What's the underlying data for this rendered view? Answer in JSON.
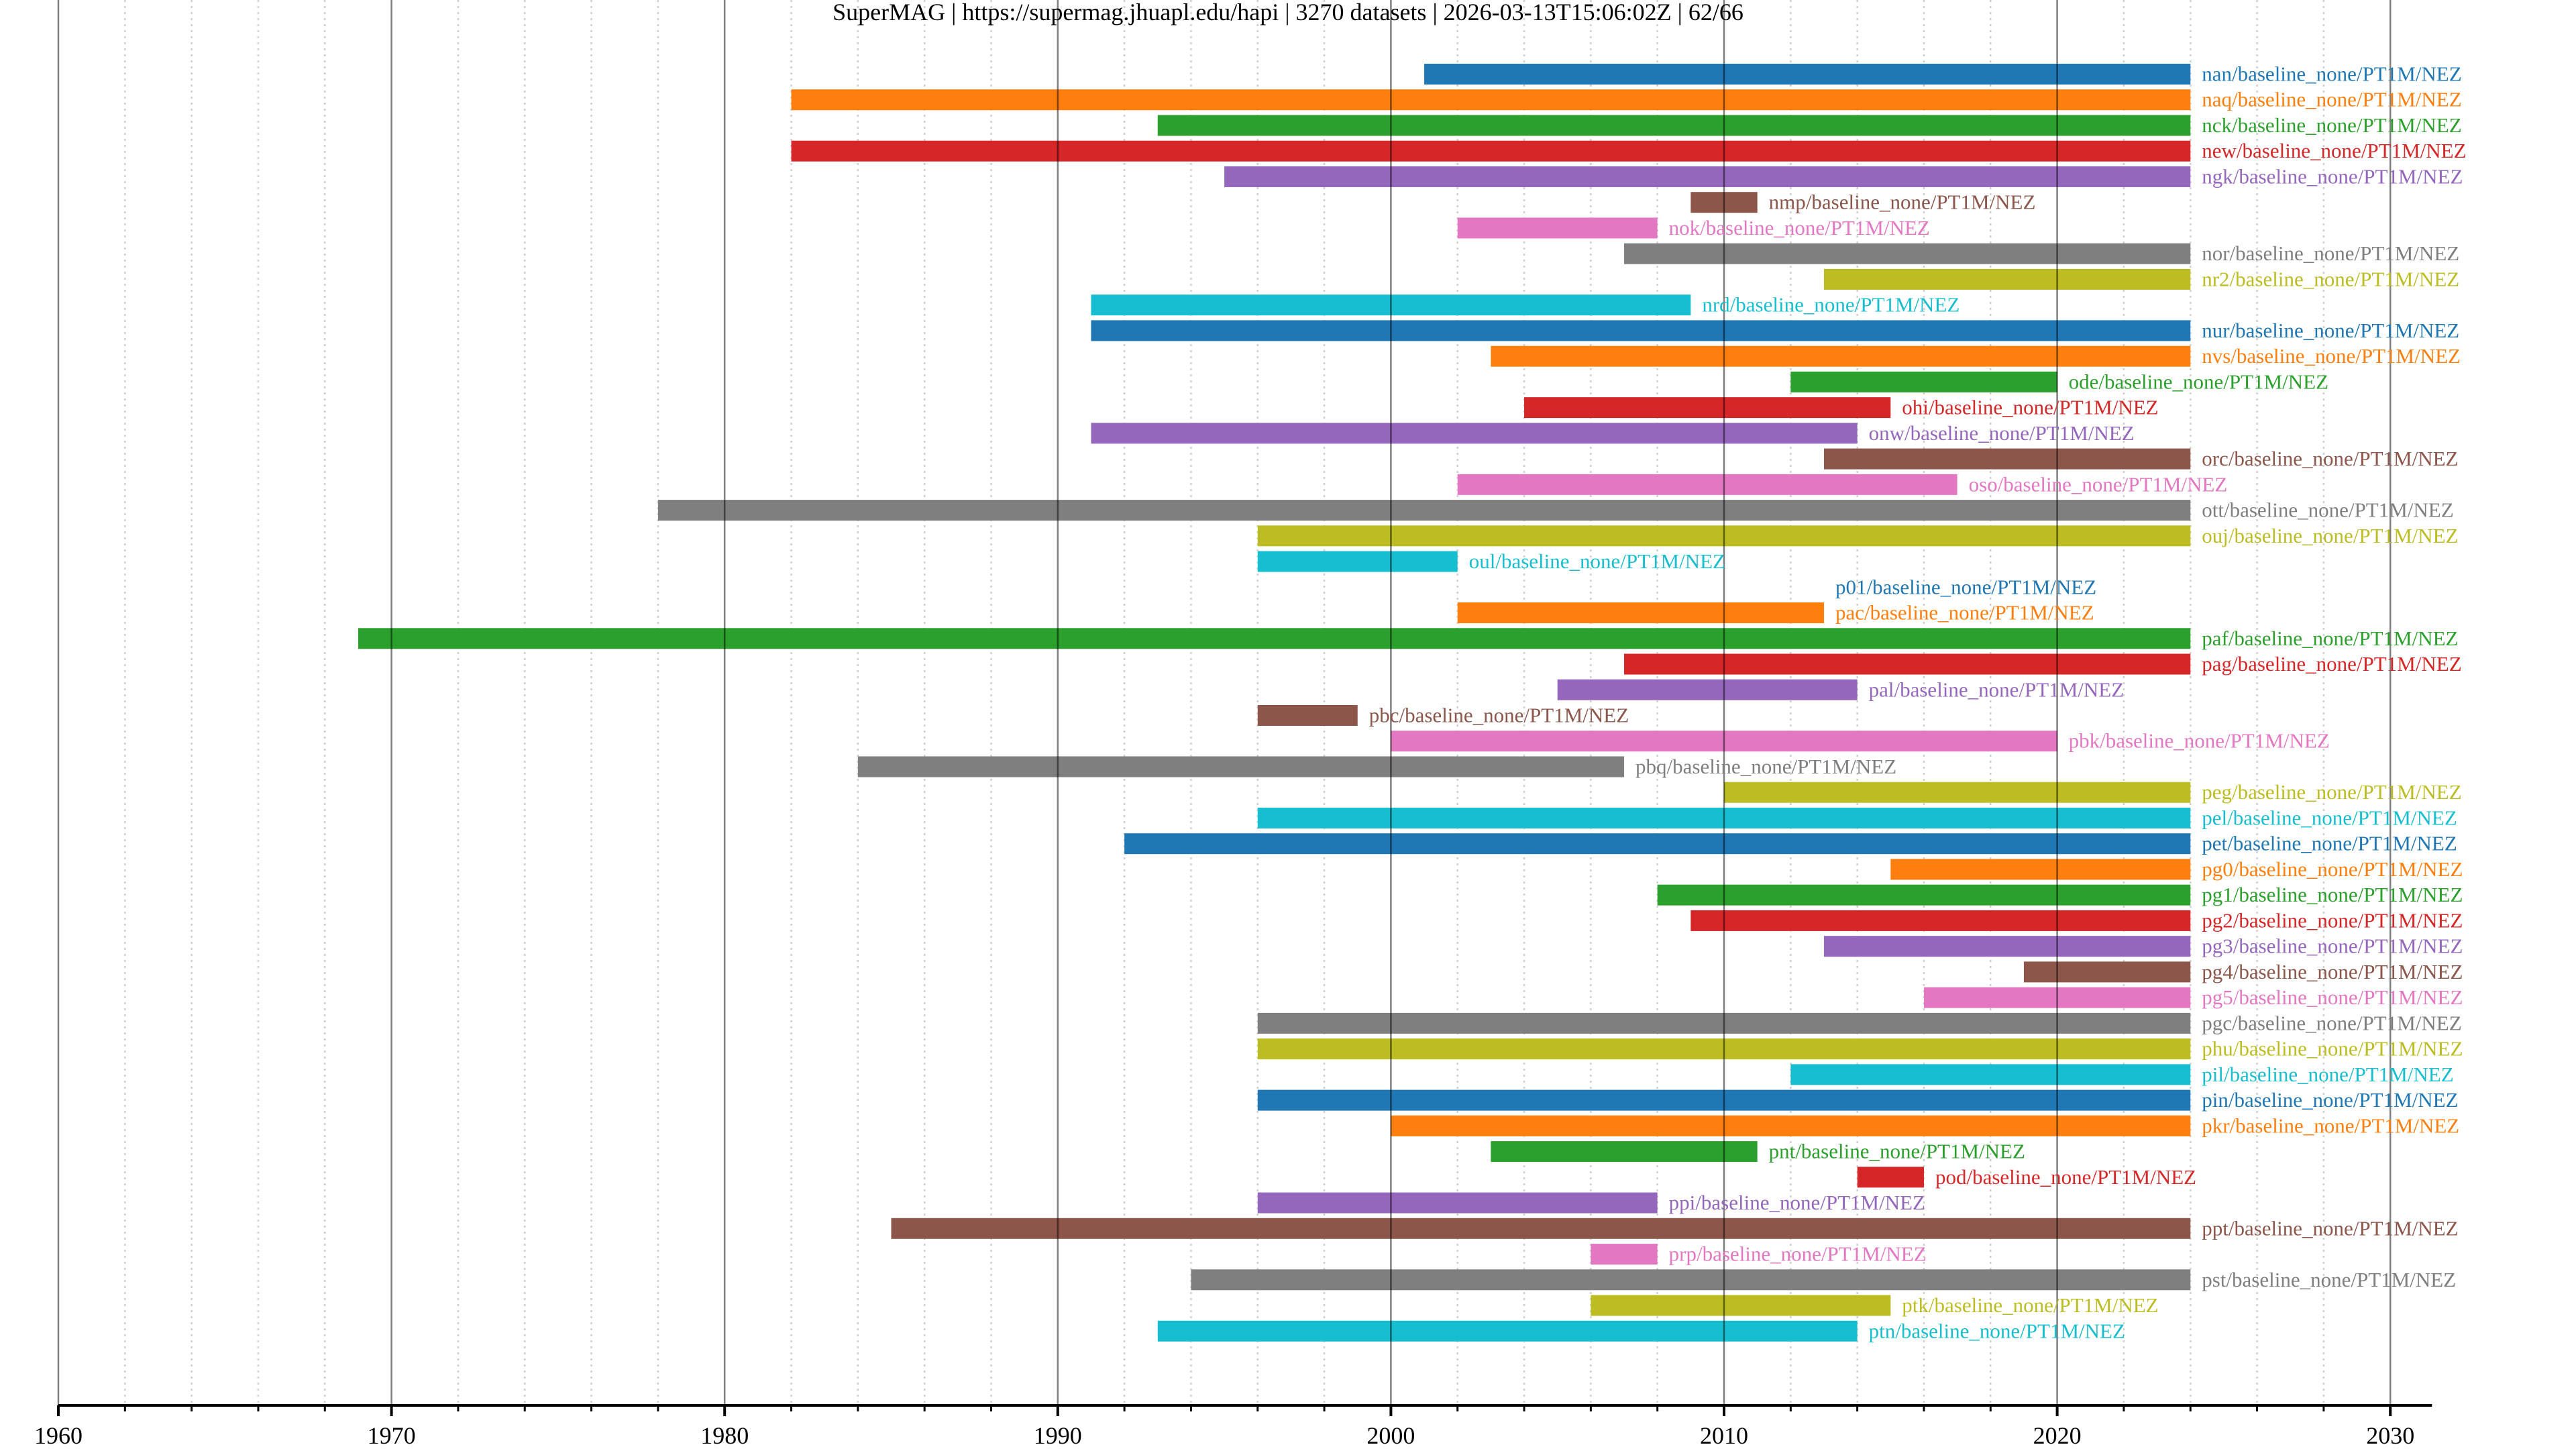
{
  "chart_data": {
    "type": "bar",
    "orientation": "horizontal-timeline",
    "title": "SuperMAG | https://supermag.jhuapl.edu/hapi | 3270 datasets | 2026-03-13T15:06:02Z | 62/66",
    "xlabel": "",
    "ylabel": "",
    "xlim": [
      1960,
      2031.25
    ],
    "x_ticks": [
      1960,
      1970,
      1980,
      1990,
      2000,
      2010,
      2020,
      2030
    ],
    "x_tick_labels": [
      "1960",
      "1970",
      "1980",
      "1990",
      "2000",
      "2010",
      "2020",
      "2030"
    ],
    "minor_tick_step": 2,
    "grid": "major solid, minor dotted",
    "palette": [
      "#1f77b4",
      "#ff7f0e",
      "#2ca02c",
      "#d62728",
      "#9467bd",
      "#8c564b",
      "#e377c2",
      "#7f7f7f",
      "#bcbd22",
      "#17becf"
    ],
    "series": [
      {
        "name": "nan/baseline_none/PT1M/NEZ",
        "start": 2001,
        "end": 2024
      },
      {
        "name": "naq/baseline_none/PT1M/NEZ",
        "start": 1982,
        "end": 2024
      },
      {
        "name": "nck/baseline_none/PT1M/NEZ",
        "start": 1993,
        "end": 2024
      },
      {
        "name": "new/baseline_none/PT1M/NEZ",
        "start": 1982,
        "end": 2024
      },
      {
        "name": "ngk/baseline_none/PT1M/NEZ",
        "start": 1995,
        "end": 2024
      },
      {
        "name": "nmp/baseline_none/PT1M/NEZ",
        "start": 2009,
        "end": 2011
      },
      {
        "name": "nok/baseline_none/PT1M/NEZ",
        "start": 2002,
        "end": 2008
      },
      {
        "name": "nor/baseline_none/PT1M/NEZ",
        "start": 2007,
        "end": 2024
      },
      {
        "name": "nr2/baseline_none/PT1M/NEZ",
        "start": 2013,
        "end": 2024
      },
      {
        "name": "nrd/baseline_none/PT1M/NEZ",
        "start": 1991,
        "end": 2009
      },
      {
        "name": "nur/baseline_none/PT1M/NEZ",
        "start": 1991,
        "end": 2024
      },
      {
        "name": "nvs/baseline_none/PT1M/NEZ",
        "start": 2003,
        "end": 2024
      },
      {
        "name": "ode/baseline_none/PT1M/NEZ",
        "start": 2012,
        "end": 2020
      },
      {
        "name": "ohi/baseline_none/PT1M/NEZ",
        "start": 2004,
        "end": 2015
      },
      {
        "name": "onw/baseline_none/PT1M/NEZ",
        "start": 1991,
        "end": 2014
      },
      {
        "name": "orc/baseline_none/PT1M/NEZ",
        "start": 2013,
        "end": 2024
      },
      {
        "name": "oso/baseline_none/PT1M/NEZ",
        "start": 2002,
        "end": 2017
      },
      {
        "name": "ott/baseline_none/PT1M/NEZ",
        "start": 1978,
        "end": 2024
      },
      {
        "name": "ouj/baseline_none/PT1M/NEZ",
        "start": 1996,
        "end": 2024
      },
      {
        "name": "oul/baseline_none/PT1M/NEZ",
        "start": 1996,
        "end": 2002
      },
      {
        "name": "p01/baseline_none/PT1M/NEZ",
        "start": 2013,
        "end": 2013
      },
      {
        "name": "pac/baseline_none/PT1M/NEZ",
        "start": 2002,
        "end": 2013
      },
      {
        "name": "paf/baseline_none/PT1M/NEZ",
        "start": 1969,
        "end": 2024
      },
      {
        "name": "pag/baseline_none/PT1M/NEZ",
        "start": 2007,
        "end": 2024
      },
      {
        "name": "pal/baseline_none/PT1M/NEZ",
        "start": 2005,
        "end": 2014
      },
      {
        "name": "pbc/baseline_none/PT1M/NEZ",
        "start": 1996,
        "end": 1999
      },
      {
        "name": "pbk/baseline_none/PT1M/NEZ",
        "start": 2000,
        "end": 2020
      },
      {
        "name": "pbq/baseline_none/PT1M/NEZ",
        "start": 1984,
        "end": 2007
      },
      {
        "name": "peg/baseline_none/PT1M/NEZ",
        "start": 2010,
        "end": 2024
      },
      {
        "name": "pel/baseline_none/PT1M/NEZ",
        "start": 1996,
        "end": 2024
      },
      {
        "name": "pet/baseline_none/PT1M/NEZ",
        "start": 1992,
        "end": 2024
      },
      {
        "name": "pg0/baseline_none/PT1M/NEZ",
        "start": 2015,
        "end": 2024
      },
      {
        "name": "pg1/baseline_none/PT1M/NEZ",
        "start": 2008,
        "end": 2024
      },
      {
        "name": "pg2/baseline_none/PT1M/NEZ",
        "start": 2009,
        "end": 2024
      },
      {
        "name": "pg3/baseline_none/PT1M/NEZ",
        "start": 2013,
        "end": 2024
      },
      {
        "name": "pg4/baseline_none/PT1M/NEZ",
        "start": 2019,
        "end": 2024
      },
      {
        "name": "pg5/baseline_none/PT1M/NEZ",
        "start": 2016,
        "end": 2024
      },
      {
        "name": "pgc/baseline_none/PT1M/NEZ",
        "start": 1996,
        "end": 2024
      },
      {
        "name": "phu/baseline_none/PT1M/NEZ",
        "start": 1996,
        "end": 2024
      },
      {
        "name": "pil/baseline_none/PT1M/NEZ",
        "start": 2012,
        "end": 2024
      },
      {
        "name": "pin/baseline_none/PT1M/NEZ",
        "start": 1996,
        "end": 2024
      },
      {
        "name": "pkr/baseline_none/PT1M/NEZ",
        "start": 2000,
        "end": 2024
      },
      {
        "name": "pnt/baseline_none/PT1M/NEZ",
        "start": 2003,
        "end": 2011
      },
      {
        "name": "pod/baseline_none/PT1M/NEZ",
        "start": 2014,
        "end": 2016
      },
      {
        "name": "ppi/baseline_none/PT1M/NEZ",
        "start": 1996,
        "end": 2008
      },
      {
        "name": "ppt/baseline_none/PT1M/NEZ",
        "start": 1985,
        "end": 2024
      },
      {
        "name": "prp/baseline_none/PT1M/NEZ",
        "start": 2006,
        "end": 2008
      },
      {
        "name": "pst/baseline_none/PT1M/NEZ",
        "start": 1994,
        "end": 2024
      },
      {
        "name": "ptk/baseline_none/PT1M/NEZ",
        "start": 2006,
        "end": 2015
      },
      {
        "name": "ptn/baseline_none/PT1M/NEZ",
        "start": 1993,
        "end": 2014
      }
    ]
  }
}
